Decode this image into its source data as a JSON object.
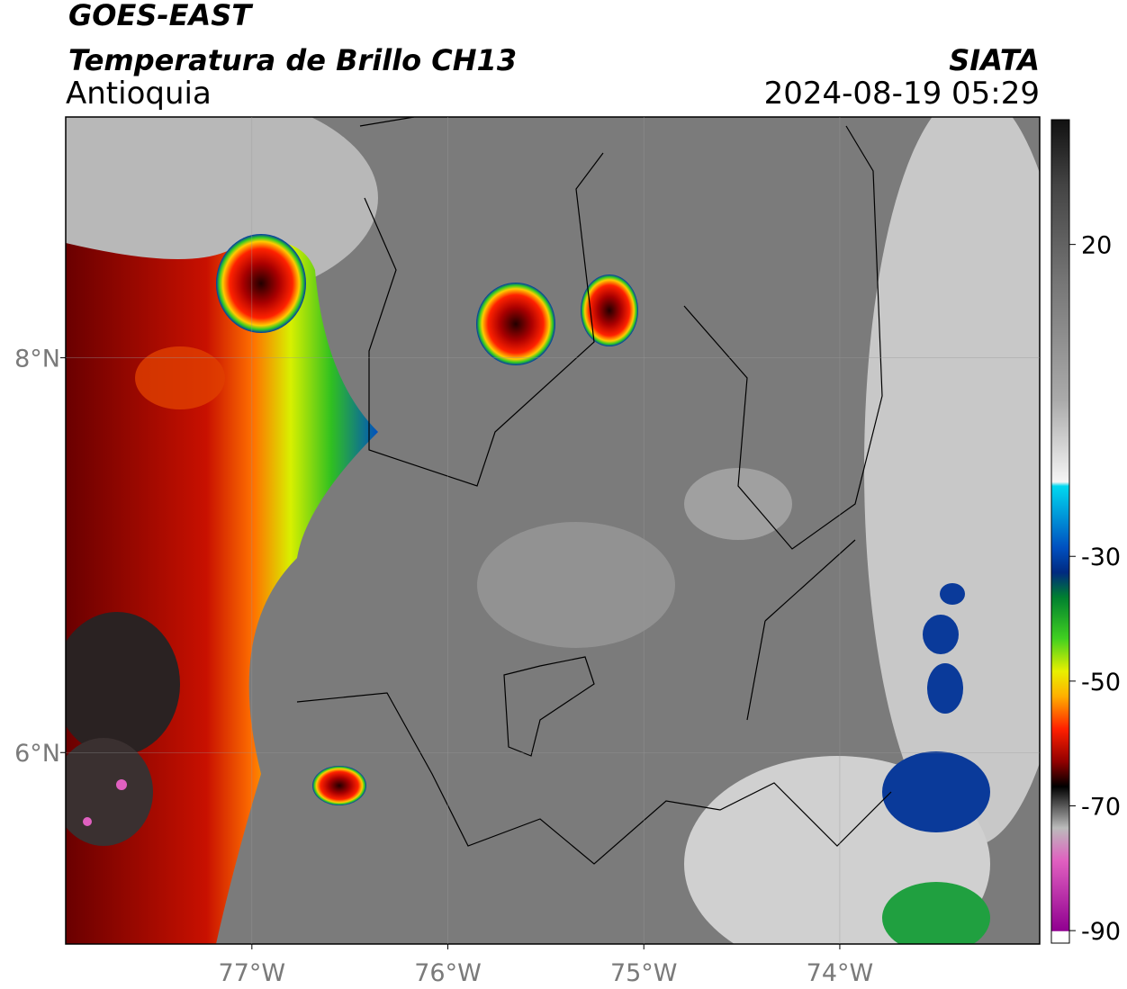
{
  "header": {
    "satellite": "GOES-EAST",
    "product": "Temperatura de Brillo CH13",
    "region": "Antioquia",
    "source": "SIATA",
    "datetime": "2024-08-19 05:29"
  },
  "chart_data": {
    "type": "map",
    "xlim": [
      -77.95,
      -72.98
    ],
    "ylim": [
      5.03,
      9.22
    ],
    "xticks": [
      {
        "value": -77,
        "label": "77°W"
      },
      {
        "value": -76,
        "label": "76°W"
      },
      {
        "value": -75,
        "label": "75°W"
      },
      {
        "value": -74,
        "label": "74°W"
      }
    ],
    "yticks": [
      {
        "value": 6,
        "label": "6°N"
      },
      {
        "value": 8,
        "label": "8°N"
      }
    ],
    "grid": true,
    "colorbar": {
      "lim": [
        -92,
        40
      ],
      "ticks": [
        20,
        -30,
        -50,
        -70,
        -90
      ]
    }
  }
}
